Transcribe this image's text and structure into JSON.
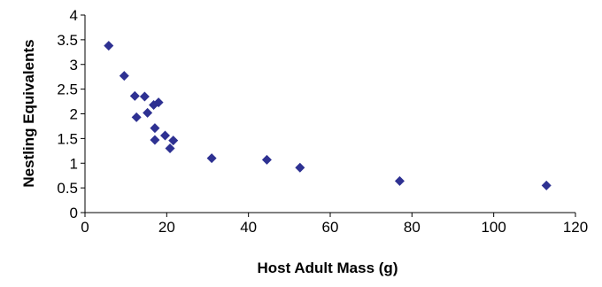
{
  "chart_data": {
    "type": "scatter",
    "title": "",
    "xlabel": "Host Adult Mass (g)",
    "ylabel": "Nestling Equivalents",
    "xlim": [
      0,
      120
    ],
    "ylim": [
      0,
      4
    ],
    "xticks": [
      0,
      20,
      40,
      60,
      80,
      100,
      120
    ],
    "yticks": [
      0,
      0.5,
      1,
      1.5,
      2,
      2.5,
      3,
      3.5,
      4
    ],
    "grid": false,
    "legend": "none",
    "marker": "diamond",
    "marker_color": "#2E3192",
    "series": [
      {
        "points": [
          {
            "x": 5.8,
            "y": 3.38
          },
          {
            "x": 9.6,
            "y": 2.77
          },
          {
            "x": 12.2,
            "y": 2.36
          },
          {
            "x": 14.6,
            "y": 2.35
          },
          {
            "x": 12.6,
            "y": 1.93
          },
          {
            "x": 15.3,
            "y": 2.02
          },
          {
            "x": 16.8,
            "y": 2.18
          },
          {
            "x": 18.0,
            "y": 2.23
          },
          {
            "x": 17.1,
            "y": 1.71
          },
          {
            "x": 17.1,
            "y": 1.47
          },
          {
            "x": 19.6,
            "y": 1.56
          },
          {
            "x": 20.8,
            "y": 1.3
          },
          {
            "x": 21.6,
            "y": 1.46
          },
          {
            "x": 31.0,
            "y": 1.1
          },
          {
            "x": 44.5,
            "y": 1.07
          },
          {
            "x": 52.6,
            "y": 0.91
          },
          {
            "x": 77.0,
            "y": 0.64
          },
          {
            "x": 112.9,
            "y": 0.55
          }
        ]
      }
    ]
  }
}
